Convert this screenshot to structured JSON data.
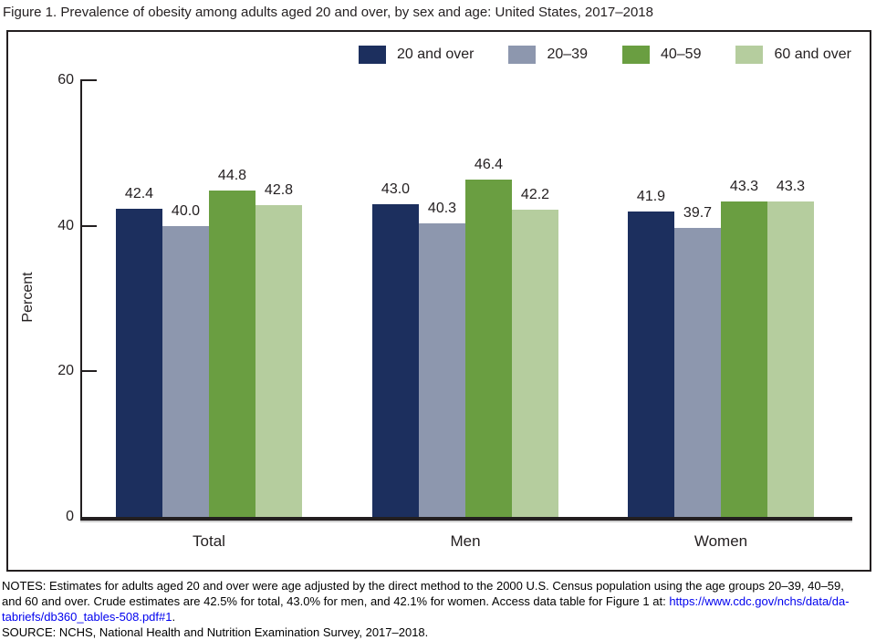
{
  "title": "Figure 1. Prevalence of obesity among adults aged 20 and over, by sex and age: United States, 2017–2018",
  "chart_data": {
    "type": "bar",
    "categories": [
      "Total",
      "Men",
      "Women"
    ],
    "series": [
      {
        "name": "20 and over",
        "color": "#1c2f5e",
        "values": [
          42.4,
          43.0,
          41.9
        ]
      },
      {
        "name": "20–39",
        "color": "#8d97ae",
        "values": [
          40.0,
          40.3,
          39.7
        ]
      },
      {
        "name": "40–59",
        "color": "#6a9e41",
        "values": [
          44.8,
          46.4,
          43.3
        ]
      },
      {
        "name": "60 and over",
        "color": "#b5cd9e",
        "values": [
          42.8,
          42.2,
          43.3
        ]
      }
    ],
    "title": "Figure 1. Prevalence of obesity among adults aged 20 and over, by sex and age: United States, 2017–2018",
    "xlabel": "",
    "ylabel": "Percent",
    "ylim": [
      0,
      60
    ],
    "yticks": [
      0,
      20,
      40,
      60
    ],
    "grid": false,
    "legend_position": "top-right",
    "value_labels": true
  },
  "notes": {
    "line1": "NOTES: Estimates for adults aged 20 and over were age adjusted by the direct method to the 2000 U.S. Census population using the age groups 20–39, 40–59,",
    "line2_text": "and 60 and over. Crude estimates are 42.5% for total, 43.0% for men, and 42.1% for women. Access data table for Figure 1 at: ",
    "line2_link": "https://www.cdc.gov/nchs/data/da-",
    "line3_link": "tabriefs/db360_tables-508.pdf#1",
    "line3_suffix": ".",
    "source": "SOURCE: NCHS, National Health and Nutrition Examination Survey, 2017–2018."
  },
  "colors": {
    "text": "#231f20",
    "axis": "#231f20",
    "link": "#0000ee"
  }
}
